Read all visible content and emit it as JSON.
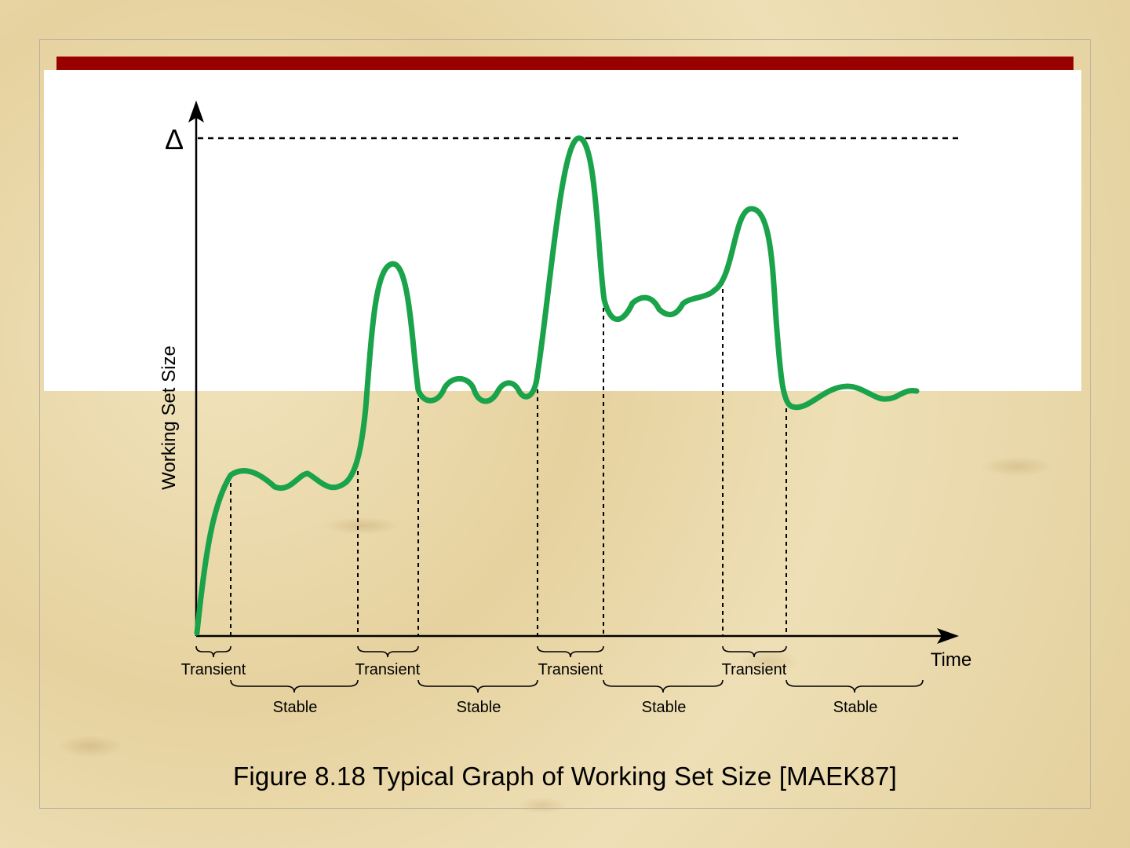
{
  "diagram": {
    "y_axis_label": "Working Set Size",
    "x_axis_label": "Time",
    "delta_symbol": "Δ",
    "transient_label": "Transient",
    "stable_label": "Stable",
    "caption": "Figure 8.18  Typical Graph of Working Set Size [MAEK87]",
    "curve_color": "#1aa34a",
    "accent_bar_color": "#990000",
    "phases": [
      "Transient",
      "Stable",
      "Transient",
      "Stable",
      "Transient",
      "Stable",
      "Transient",
      "Stable"
    ]
  }
}
